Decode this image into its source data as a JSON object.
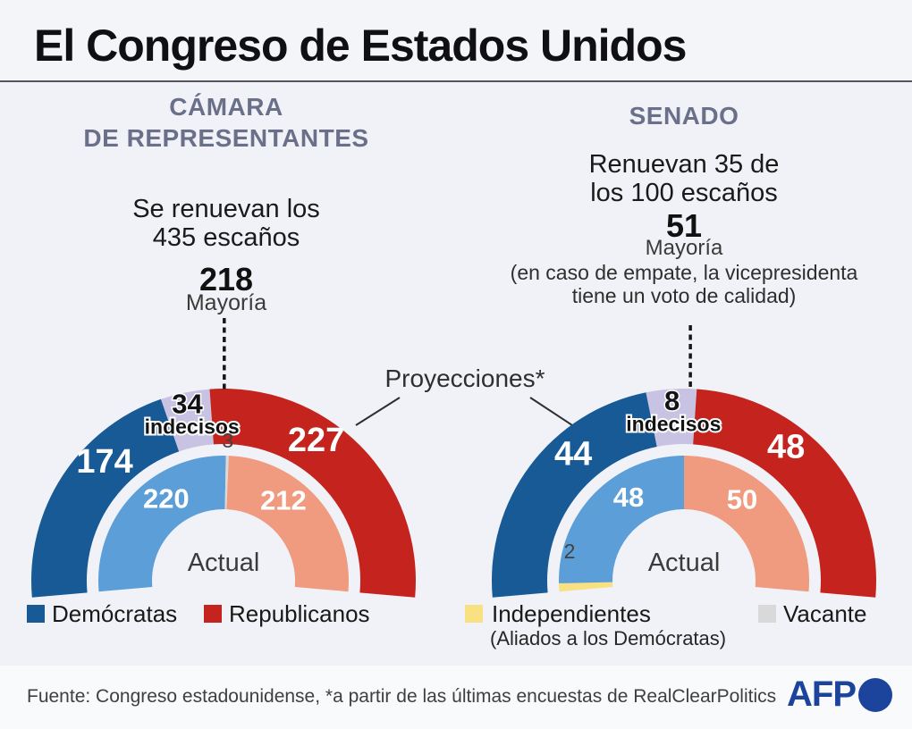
{
  "title": "El Congreso de Estados Unidos",
  "projections_label": "Proyecciones*",
  "house": {
    "header_line1": "CÁMARA",
    "header_line2": "DE REPRESENTANTES",
    "renewal_line1": "Se renuevan los",
    "renewal_line2": "435 escaños",
    "majority_value": "218",
    "majority_label": "Mayoría"
  },
  "senate": {
    "header": "SENADO",
    "renewal_line1": "Renuevan 35 de",
    "renewal_line2": "los 100 escaños",
    "majority_value": "51",
    "majority_label": "Mayoría",
    "majority_note_line1": "(en caso de empate, la vicepresidenta",
    "majority_note_line2": "tiene un voto de calidad)"
  },
  "legend": {
    "items": [
      {
        "label": "Demócratas",
        "color": "#175a95",
        "sublabel": ""
      },
      {
        "label": "Republicanos",
        "color": "#c4241d",
        "sublabel": ""
      },
      {
        "label": "Independientes",
        "color": "#f8e181",
        "sublabel": "(Aliados a los Demócratas)"
      },
      {
        "label": "Vacante",
        "color": "#d9d9d9",
        "sublabel": ""
      }
    ]
  },
  "footer": {
    "source_text": "Fuente:  Congreso estadounidense, *a partir de las últimas encuestas de RealClearPolitics",
    "afp_label": "AFP"
  },
  "colors": {
    "page_bg": "#f1f2f7",
    "footer_bg": "#f9fafc",
    "section_header_text": "#6a7089",
    "dem_solid": "#175a95",
    "rep_solid": "#c4241d",
    "dem_light": "#5c9ed8",
    "rep_light": "#f09a7f",
    "undecided_purple": "#c9c3e3",
    "independent_yellow": "#f8e181",
    "vacant_gray": "#d9d9d9",
    "afp_blue": "#1c449c"
  },
  "chart_data": [
    {
      "type": "pie",
      "variant": "half-donut-gauge",
      "title": "CÁMARA DE REPRESENTANTES",
      "subtitle": "Se renuevan los 435 escaños",
      "total_seats": 435,
      "majority": 218,
      "legend_position": "bottom",
      "rings": [
        {
          "name": "Proyecciones*",
          "position": "outer",
          "segments": [
            {
              "label": "Demócratas",
              "value": 174,
              "color": "#175a95",
              "number_style": "inside-light"
            },
            {
              "label": "indecisos",
              "value": 34,
              "color": "#c9c3e3",
              "number_style": "inside-dark",
              "sublabel": "indecisos"
            },
            {
              "label": "Republicanos",
              "value": 227,
              "color": "#c4241d",
              "number_style": "inside-light"
            }
          ]
        },
        {
          "name": "Actual",
          "position": "inner",
          "segments": [
            {
              "label": "Demócratas",
              "value": 220,
              "color": "#5c9ed8",
              "number_style": "inside-light"
            },
            {
              "label": "Vacante",
              "value": 3,
              "color": "#d9d9d9",
              "number_style": "outside-top"
            },
            {
              "label": "Republicanos",
              "value": 212,
              "color": "#f09a7f",
              "number_style": "inside-light"
            }
          ]
        }
      ]
    },
    {
      "type": "pie",
      "variant": "half-donut-gauge",
      "title": "SENADO",
      "subtitle": "Renuevan 35 de los 100 escaños",
      "total_seats": 100,
      "majority": 51,
      "legend_position": "bottom",
      "rings": [
        {
          "name": "Proyecciones*",
          "position": "outer",
          "segments": [
            {
              "label": "Demócratas",
              "value": 44,
              "color": "#175a95",
              "number_style": "inside-light"
            },
            {
              "label": "indecisos",
              "value": 8,
              "color": "#c9c3e3",
              "number_style": "inside-dark",
              "sublabel": "indecisos"
            },
            {
              "label": "Republicanos",
              "value": 48,
              "color": "#c4241d",
              "number_style": "inside-light"
            }
          ]
        },
        {
          "name": "Actual",
          "position": "inner",
          "segments": [
            {
              "label": "Independientes",
              "value": 2,
              "color": "#f8e181",
              "number_style": "outside-start"
            },
            {
              "label": "Demócratas",
              "value": 48,
              "color": "#5c9ed8",
              "number_style": "inside-light"
            },
            {
              "label": "Republicanos",
              "value": 50,
              "color": "#f09a7f",
              "number_style": "inside-light"
            }
          ]
        }
      ]
    }
  ]
}
